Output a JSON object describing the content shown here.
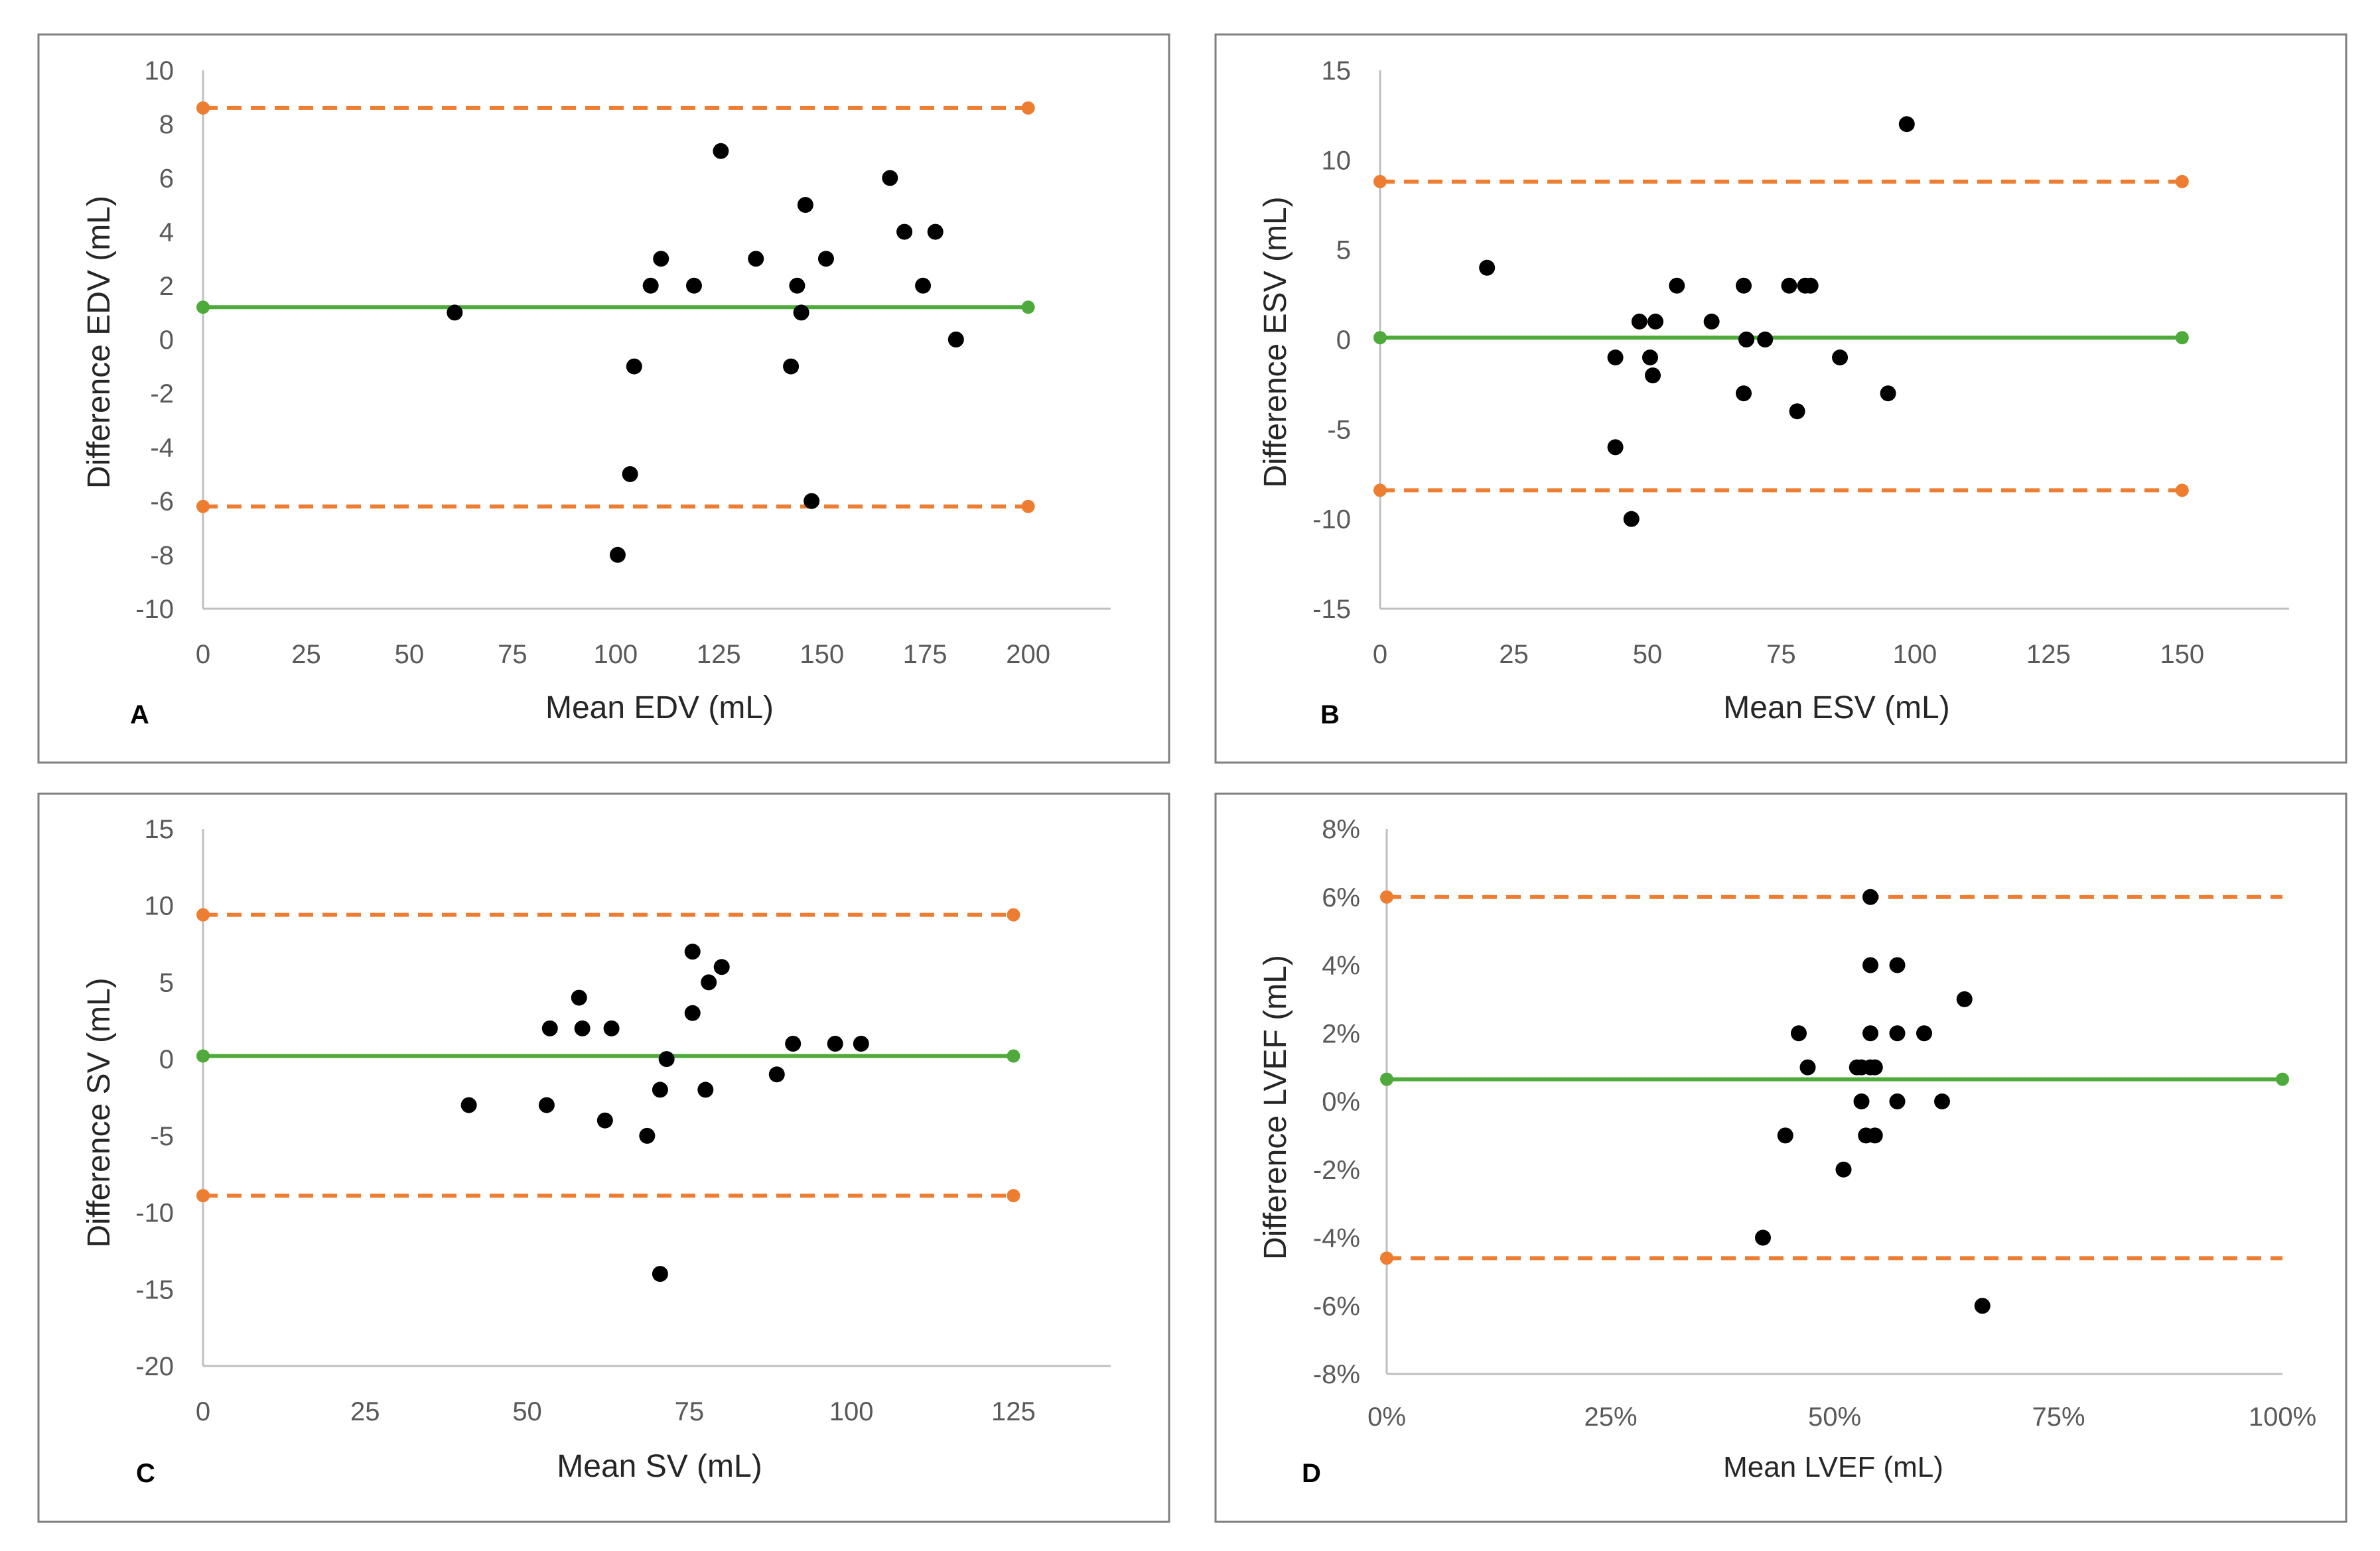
{
  "colors": {
    "loa": "#ED7D31",
    "bias": "#4EAA3A",
    "points": "#000000",
    "frame": "#7F7F7F",
    "axis": "#BFBFBF",
    "tick_text": "#595959"
  },
  "chart_data": [
    {
      "panel": "A",
      "type": "scatter",
      "xlabel": "Mean EDV (mL)",
      "ylabel": "Difference EDV (mL)",
      "xlim": [
        0,
        220
      ],
      "ylim": [
        -10,
        10
      ],
      "x_ticks": [
        0,
        25,
        50,
        75,
        100,
        125,
        150,
        175,
        200
      ],
      "y_ticks": [
        -10,
        -8,
        -6,
        -4,
        -2,
        0,
        2,
        4,
        6,
        8,
        10
      ],
      "x_tick_labels": [
        "0",
        "25",
        "50",
        "75",
        "100",
        "125",
        "150",
        "175",
        "200"
      ],
      "y_tick_labels": [
        "-10",
        "-8",
        "-6",
        "-4",
        "-2",
        "0",
        "2",
        "4",
        "6",
        "8",
        "10"
      ],
      "bias": 1.2,
      "upper_loa": 8.6,
      "lower_loa": -6.2,
      "line_x_range": [
        0,
        200
      ],
      "points": [
        [
          61,
          1
        ],
        [
          100.5,
          -8
        ],
        [
          103.5,
          -5
        ],
        [
          104.5,
          -1
        ],
        [
          108.5,
          2
        ],
        [
          111,
          3
        ],
        [
          119,
          2
        ],
        [
          125.5,
          7
        ],
        [
          134,
          3
        ],
        [
          142.5,
          -1
        ],
        [
          144,
          2
        ],
        [
          145,
          1
        ],
        [
          146,
          5
        ],
        [
          147.5,
          -6
        ],
        [
          151,
          3
        ],
        [
          166.5,
          6
        ],
        [
          170,
          4
        ],
        [
          174.5,
          2
        ],
        [
          177.5,
          4
        ],
        [
          182.5,
          0
        ]
      ]
    },
    {
      "panel": "B",
      "type": "scatter",
      "xlabel": "Mean ESV (mL)",
      "ylabel": "Difference ESV (mL)",
      "xlim": [
        0,
        170
      ],
      "ylim": [
        -15,
        15
      ],
      "x_ticks": [
        0,
        25,
        50,
        75,
        100,
        125,
        150
      ],
      "y_ticks": [
        -15,
        -10,
        -5,
        0,
        5,
        10,
        15
      ],
      "x_tick_labels": [
        "0",
        "25",
        "50",
        "75",
        "100",
        "125",
        "150"
      ],
      "y_tick_labels": [
        "-15",
        "-10",
        "-5",
        "0",
        "5",
        "10",
        "15"
      ],
      "bias": 0.1,
      "upper_loa": 8.8,
      "lower_loa": -8.4,
      "line_x_range": [
        0,
        150
      ],
      "points": [
        [
          20,
          4
        ],
        [
          44,
          -1
        ],
        [
          44,
          -6
        ],
        [
          47,
          -10
        ],
        [
          48.5,
          1
        ],
        [
          50.5,
          -1
        ],
        [
          51,
          -2
        ],
        [
          51.5,
          1
        ],
        [
          55.5,
          3
        ],
        [
          62,
          1
        ],
        [
          68,
          -3
        ],
        [
          68,
          3
        ],
        [
          68.5,
          0
        ],
        [
          72,
          0
        ],
        [
          76.5,
          3
        ],
        [
          78,
          -4
        ],
        [
          79.5,
          3
        ],
        [
          80.5,
          3
        ],
        [
          86,
          -1
        ],
        [
          95,
          -3
        ],
        [
          98.5,
          12
        ]
      ]
    },
    {
      "panel": "C",
      "type": "scatter",
      "xlabel": "Mean SV (mL)",
      "ylabel": "Difference SV (mL)",
      "xlim": [
        0,
        140
      ],
      "ylim": [
        -20,
        15
      ],
      "x_ticks": [
        0,
        25,
        50,
        75,
        100,
        125
      ],
      "y_ticks": [
        -20,
        -15,
        -10,
        -5,
        0,
        5,
        10,
        15
      ],
      "x_tick_labels": [
        "0",
        "25",
        "50",
        "75",
        "100",
        "125"
      ],
      "y_tick_labels": [
        "-20",
        "-15",
        "-10",
        "-5",
        "0",
        "5",
        "10",
        "15"
      ],
      "bias": 0.2,
      "upper_loa": 9.4,
      "lower_loa": -8.9,
      "line_x_range": [
        0,
        125
      ],
      "points": [
        [
          41,
          -3
        ],
        [
          53,
          -3
        ],
        [
          53.5,
          2
        ],
        [
          58,
          4
        ],
        [
          58.5,
          2
        ],
        [
          62,
          -4
        ],
        [
          63,
          2
        ],
        [
          68.5,
          -5
        ],
        [
          70.5,
          -2
        ],
        [
          70.5,
          -14
        ],
        [
          71.5,
          0
        ],
        [
          75.5,
          3
        ],
        [
          75.5,
          7
        ],
        [
          77.5,
          -2
        ],
        [
          78,
          5
        ],
        [
          80,
          6
        ],
        [
          88.5,
          -1
        ],
        [
          91,
          1
        ],
        [
          97.5,
          1
        ],
        [
          101.5,
          1
        ]
      ]
    },
    {
      "panel": "D",
      "type": "scatter",
      "xlabel": "Mean LVEF (mL)",
      "ylabel": "Difference LVEF (mL)",
      "xlim": [
        0,
        100
      ],
      "ylim": [
        -8,
        8
      ],
      "x_ticks": [
        0,
        25,
        50,
        75,
        100
      ],
      "y_ticks": [
        -8,
        -6,
        -4,
        -2,
        0,
        2,
        4,
        6,
        8
      ],
      "x_tick_labels": [
        "0%",
        "25%",
        "50%",
        "75%",
        "100%"
      ],
      "y_tick_labels": [
        "-8%",
        "-6%",
        "-4%",
        "-2%",
        "0%",
        "2%",
        "4%",
        "6%",
        "8%"
      ],
      "bias": 0.65,
      "upper_loa": 6.0,
      "lower_loa": -4.6,
      "line_x_range": [
        0,
        100
      ],
      "points": [
        [
          42,
          -4
        ],
        [
          44.5,
          -1
        ],
        [
          46,
          2
        ],
        [
          47,
          1
        ],
        [
          51,
          -2
        ],
        [
          52.5,
          1
        ],
        [
          53,
          0
        ],
        [
          53,
          1
        ],
        [
          53.5,
          -1
        ],
        [
          54,
          4
        ],
        [
          54,
          2
        ],
        [
          54,
          1
        ],
        [
          54,
          6
        ],
        [
          54.5,
          1
        ],
        [
          54.5,
          -1
        ],
        [
          57,
          4
        ],
        [
          57,
          2
        ],
        [
          57,
          0
        ],
        [
          60,
          2
        ],
        [
          62,
          0
        ],
        [
          64.5,
          3
        ],
        [
          66.5,
          -6
        ]
      ]
    }
  ]
}
